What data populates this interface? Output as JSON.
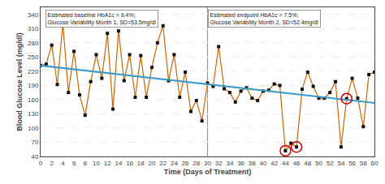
{
  "chart_data": {
    "type": "line",
    "xlabel": "Time (Days of Treatment)",
    "ylabel": "Blood Glucose Level (mg/dl)",
    "xlim": [
      0,
      60
    ],
    "ylim": [
      40,
      355
    ],
    "xticks": [
      0,
      2,
      4,
      6,
      8,
      10,
      12,
      14,
      16,
      18,
      20,
      22,
      24,
      26,
      28,
      30,
      32,
      34,
      36,
      38,
      40,
      42,
      44,
      46,
      48,
      50,
      52,
      54,
      56,
      58,
      60
    ],
    "yticks": [
      40,
      70,
      100,
      130,
      160,
      190,
      220,
      250,
      280,
      310,
      340
    ],
    "grid": "y",
    "x": [
      0,
      1,
      2,
      3,
      4,
      5,
      6,
      7,
      8,
      9,
      10,
      11,
      12,
      13,
      14,
      15,
      16,
      17,
      18,
      19,
      20,
      21,
      22,
      23,
      24,
      25,
      26,
      27,
      28,
      29,
      30,
      31,
      32,
      33,
      34,
      35,
      36,
      37,
      38,
      39,
      40,
      41,
      42,
      43,
      44,
      45,
      46,
      47,
      48,
      49,
      50,
      51,
      52,
      53,
      54,
      55,
      56,
      57,
      58,
      59,
      60
    ],
    "series": [
      {
        "color": "#CC6600",
        "marker": "square",
        "values": [
          232,
          235,
          275,
          192,
          320,
          175,
          262,
          170,
          127,
          198,
          255,
          205,
          300,
          140,
          305,
          200,
          255,
          165,
          253,
          165,
          228,
          280,
          316,
          200,
          255,
          165,
          218,
          135,
          158,
          115,
          195,
          188,
          272,
          183,
          175,
          155,
          178,
          185,
          163,
          158,
          178,
          180,
          193,
          190,
          52,
          68,
          60,
          182,
          218,
          188,
          163,
          163,
          175,
          198,
          60,
          162,
          205,
          163,
          103,
          213,
          218
        ]
      }
    ],
    "marker_color": "#111111",
    "trend": {
      "x": [
        0,
        60
      ],
      "values": [
        232,
        153
      ],
      "color": "#3B9BC8"
    },
    "divider_x": 30,
    "divider_color": "#999999",
    "circled_x": [
      44,
      46,
      55
    ],
    "circle_color": "#CC0000",
    "annotations": [
      "Estimated baseline HbA1c = 9.4%;\nGlucose Variability Month 1, SD=53.5mg/dl",
      "Estimated endpoint HbA1c = 7.5%;\nGlucose Variability Month 2, SD=52.4mg/dl"
    ]
  }
}
